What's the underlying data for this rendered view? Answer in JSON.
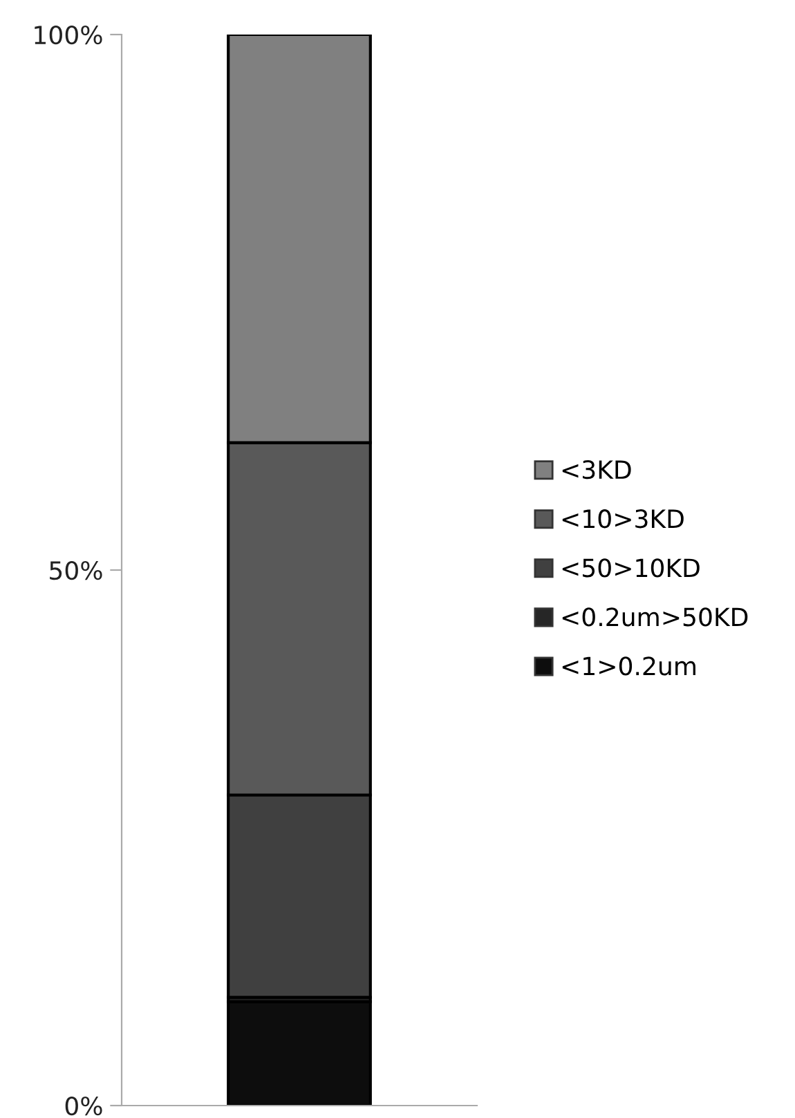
{
  "chart_data": {
    "type": "bar",
    "stacked": true,
    "categories": [
      null
    ],
    "series": [
      {
        "name": "<1>0.2um",
        "color": "#0d0d0d",
        "values": [
          9.7
        ]
      },
      {
        "name": "<0.2um>50KD",
        "color": "#262626",
        "values": [
          0.4
        ]
      },
      {
        "name": "<50>10KD",
        "color": "#404040",
        "values": [
          18.9
        ]
      },
      {
        "name": "<10>3KD",
        "color": "#595959",
        "values": [
          32.9
        ]
      },
      {
        "name": "<3KD",
        "color": "#808080",
        "values": [
          38.1
        ]
      }
    ],
    "ylim": [
      0,
      100
    ],
    "yticks": [
      {
        "value": 0,
        "label": "0%"
      },
      {
        "value": 50,
        "label": "50%"
      },
      {
        "value": 100,
        "label": "100%"
      }
    ],
    "grid": false,
    "legend": "right"
  }
}
